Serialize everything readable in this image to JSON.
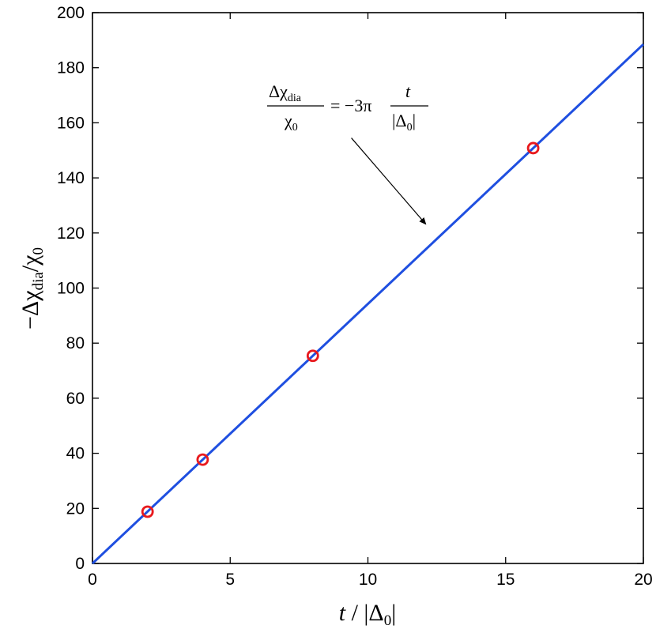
{
  "chart_data": {
    "type": "line",
    "xlabel": {
      "main": "t",
      "sep": " / |Δ",
      "sub": "0",
      "end": "|"
    },
    "ylabel": {
      "minus": "−Δχ",
      "sub1": "dia",
      "slash": "/χ",
      "sub2": "0"
    },
    "xlim": [
      0,
      20
    ],
    "ylim": [
      0,
      200
    ],
    "xticks": [
      0,
      5,
      10,
      15,
      20
    ],
    "yticks": [
      0,
      20,
      40,
      60,
      80,
      100,
      120,
      140,
      160,
      180,
      200
    ],
    "grid": false,
    "series": [
      {
        "kind": "line",
        "color": "#1f4fe0",
        "x": [
          0,
          20
        ],
        "y": [
          0,
          188.5
        ]
      },
      {
        "kind": "scatter",
        "marker": "open-circle",
        "color": "#e8191d",
        "x": [
          2,
          4,
          8,
          16
        ],
        "y": [
          18.8,
          37.7,
          75.4,
          150.8
        ]
      }
    ],
    "annotation": {
      "num": {
        "a": "Δχ",
        "sub": "dia"
      },
      "den": {
        "a": "χ",
        "sub": "0"
      },
      "mid": "= −3π",
      "frac2_num": "t",
      "frac2_den": {
        "a": "|Δ",
        "sub": "0",
        "end": "|"
      },
      "arrow_from": [
        9.4,
        154.5
      ],
      "arrow_to": [
        12.1,
        123.2
      ]
    }
  }
}
